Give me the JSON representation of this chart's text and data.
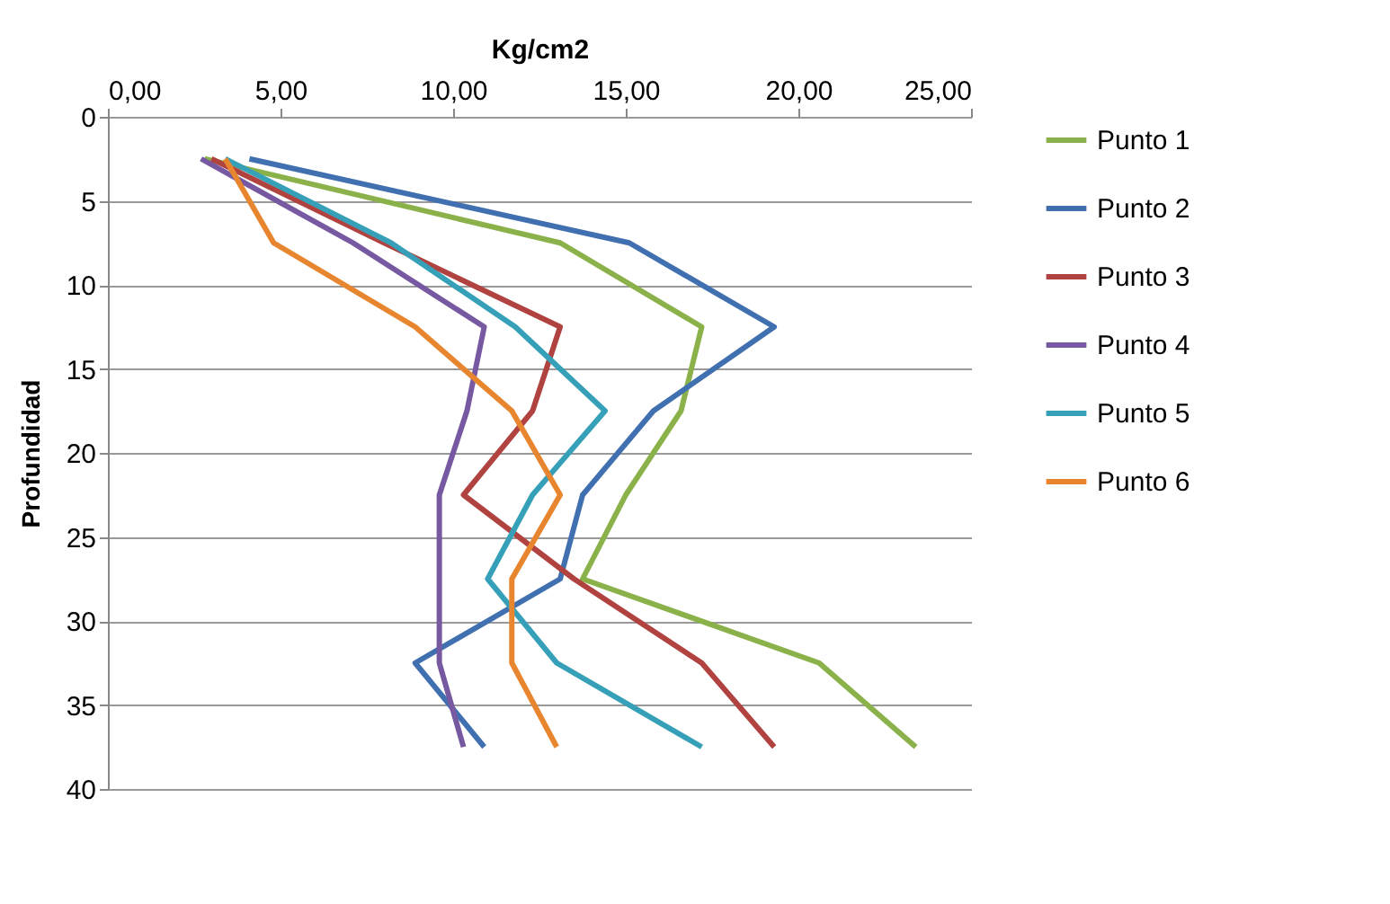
{
  "chart_data": {
    "type": "line",
    "xlabel": "Kg/cm2",
    "ylabel": "Profundidad",
    "xlim": [
      0,
      25
    ],
    "xticks": [
      {
        "value": 0,
        "label": "0,00"
      },
      {
        "value": 5,
        "label": "5,00"
      },
      {
        "value": 10,
        "label": "10,00"
      },
      {
        "value": 15,
        "label": "15,00"
      },
      {
        "value": 20,
        "label": "20,00"
      },
      {
        "value": 25,
        "label": "25,00"
      }
    ],
    "ylim": [
      40,
      0
    ],
    "yticks": [
      0,
      5,
      10,
      15,
      20,
      25,
      30,
      35,
      40
    ],
    "grid": "y",
    "legend": "right",
    "marker": "none",
    "line_style": "solid",
    "series": [
      {
        "name": "Punto 1",
        "color": "#8bb24a",
        "x": [
          2.8,
          13.1,
          17.2,
          16.6,
          15.0,
          13.75,
          20.6,
          23.4
        ],
        "values": [
          2.5,
          7.5,
          12.5,
          17.5,
          22.5,
          27.5,
          32.5,
          37.5
        ]
      },
      {
        "name": "Punto 2",
        "color": "#4170b0",
        "x": [
          4.1,
          15.1,
          19.3,
          15.8,
          13.75,
          13.1,
          8.9,
          10.9
        ],
        "values": [
          2.5,
          7.5,
          12.5,
          17.5,
          22.5,
          27.5,
          32.5,
          37.5
        ]
      },
      {
        "name": "Punto 3",
        "color": "#b04340",
        "x": [
          3.0,
          8.0,
          13.1,
          12.3,
          10.3,
          13.5,
          17.2,
          19.3
        ],
        "values": [
          2.5,
          7.5,
          12.5,
          17.5,
          22.5,
          27.5,
          32.5,
          37.5
        ]
      },
      {
        "name": "Punto 4",
        "color": "#7659a0",
        "x": [
          2.7,
          7.1,
          10.9,
          10.4,
          9.6,
          9.6,
          9.6,
          10.3
        ],
        "values": [
          2.5,
          7.5,
          12.5,
          17.5,
          22.5,
          27.5,
          32.5,
          37.5
        ]
      },
      {
        "name": "Punto 5",
        "color": "#35a0b8",
        "x": [
          3.4,
          8.2,
          11.8,
          14.4,
          12.3,
          11.0,
          13.0,
          17.2
        ],
        "values": [
          2.5,
          7.5,
          12.5,
          17.5,
          22.5,
          27.5,
          32.5,
          37.5
        ]
      },
      {
        "name": "Punto 6",
        "color": "#e8862f",
        "x": [
          3.4,
          4.8,
          8.9,
          11.7,
          13.1,
          11.7,
          11.7,
          13.0
        ],
        "values": [
          2.5,
          7.5,
          12.5,
          17.5,
          22.5,
          27.5,
          32.5,
          37.5
        ]
      }
    ]
  }
}
